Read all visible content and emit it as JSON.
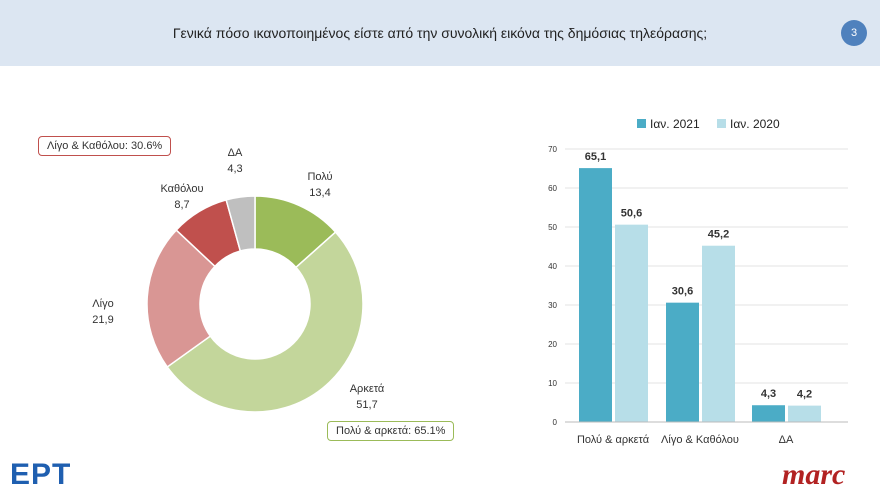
{
  "header": {
    "title": "Γενικά πόσο ικανοποιημένος είστε από την συνολική εικόνα της δημόσιας τηλεόρασης;",
    "page": "3"
  },
  "logos": {
    "left": "ΕΡΤ",
    "right": "marc"
  },
  "chart_data": [
    {
      "type": "pie",
      "donut": true,
      "slices": [
        {
          "label": "Πολύ",
          "value": 13.4,
          "display": "13,4",
          "color": "#9bbb59"
        },
        {
          "label": "Αρκετά",
          "value": 51.7,
          "display": "51,7",
          "color": "#c3d69b"
        },
        {
          "label": "Λίγο",
          "value": 21.9,
          "display": "21,9",
          "color": "#d99694"
        },
        {
          "label": "Καθόλου",
          "value": 8.7,
          "display": "8,7",
          "color": "#c0504d"
        },
        {
          "label": "ΔΑ",
          "value": 4.3,
          "display": "4,3",
          "color": "#bfbfbf"
        }
      ],
      "annotations": [
        "Λίγο & Καθόλου: 30.6%",
        "Πολύ & αρκετά: 65.1%"
      ]
    },
    {
      "type": "bar",
      "categories": [
        "Πολύ & αρκετά",
        "Λίγο & Καθόλου",
        "ΔΑ"
      ],
      "series": [
        {
          "name": "Ιαν. 2021",
          "values": [
            65.1,
            30.6,
            4.3
          ],
          "labels": [
            "65,1",
            "30,6",
            "4,3"
          ],
          "color": "#4bacc6"
        },
        {
          "name": "Ιαν. 2020",
          "values": [
            50.6,
            45.2,
            4.2
          ],
          "labels": [
            "50,6",
            "45,2",
            "4,2"
          ],
          "color": "#b7dee8"
        }
      ],
      "ylim": [
        0,
        70
      ],
      "yticks": [
        "0",
        "10",
        "20",
        "30",
        "40",
        "50",
        "60",
        "70"
      ],
      "legend": "top",
      "grid": true
    }
  ]
}
